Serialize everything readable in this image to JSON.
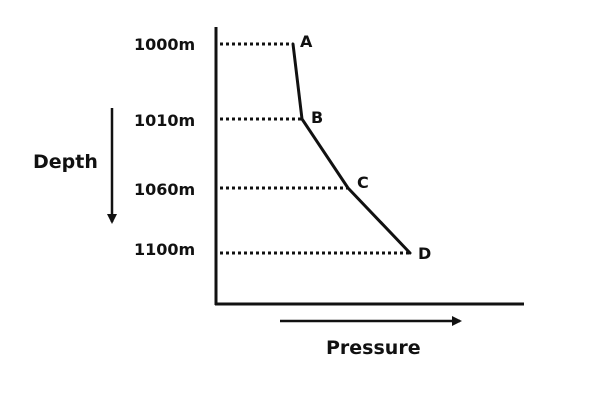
{
  "depth_axis": {
    "title": "Depth",
    "ticks": [
      "1000m",
      "1010m",
      "1060m",
      "1100m"
    ]
  },
  "pressure_axis": {
    "title": "Pressure"
  },
  "curve": {
    "points": [
      {
        "label": "A",
        "depth_label": "1000m"
      },
      {
        "label": "B",
        "depth_label": "1010m"
      },
      {
        "label": "C",
        "depth_label": "1060m"
      },
      {
        "label": "D",
        "depth_label": "1100m"
      }
    ]
  },
  "colors": {
    "ink": "#111111",
    "background": "#ffffff"
  }
}
